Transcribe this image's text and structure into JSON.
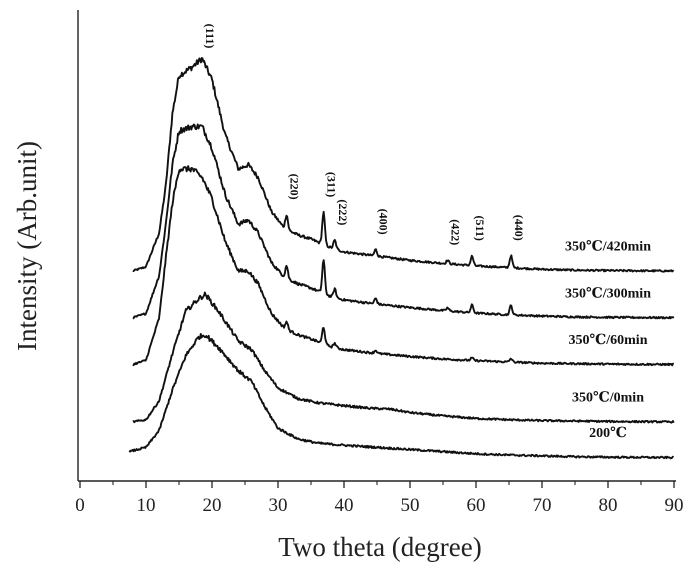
{
  "chart_data": {
    "type": "line",
    "title": "",
    "xlabel": "Two theta (degree)",
    "ylabel": "Intensity (Arb.unit)",
    "xlim": [
      0,
      90
    ],
    "x_ticks": [
      0,
      10,
      20,
      30,
      40,
      50,
      60,
      70,
      80,
      90
    ],
    "y_scale": "arbitrary",
    "grid": false,
    "legend": "inline labels at right",
    "line_color": "#111111",
    "peak_labels": [
      {
        "label": "(111)",
        "x": 18.5
      },
      {
        "label": "(220)",
        "x": 31.3
      },
      {
        "label": "(311)",
        "x": 36.9
      },
      {
        "label": "(222)",
        "x": 38.6
      },
      {
        "label": "(400)",
        "x": 44.8
      },
      {
        "label": "(422)",
        "x": 55.7
      },
      {
        "label": "(511)",
        "x": 59.4
      },
      {
        "label": "(440)",
        "x": 65.3
      }
    ],
    "series": [
      {
        "name": "350℃/420min",
        "offset": 4.4,
        "base": [
          [
            8,
            0
          ],
          [
            10,
            0.1
          ],
          [
            12,
            0.9
          ],
          [
            13,
            2.0
          ],
          [
            14,
            3.7
          ],
          [
            15,
            4.6
          ],
          [
            17,
            4.8
          ],
          [
            18.5,
            5.0
          ],
          [
            20,
            4.5
          ],
          [
            22,
            3.2
          ],
          [
            24,
            2.4
          ],
          [
            25.5,
            2.5
          ],
          [
            27,
            2.2
          ],
          [
            29,
            1.4
          ],
          [
            31,
            1.0
          ],
          [
            33,
            0.85
          ],
          [
            35,
            0.75
          ],
          [
            38,
            0.55
          ],
          [
            40,
            0.45
          ],
          [
            45,
            0.35
          ],
          [
            50,
            0.25
          ],
          [
            55,
            0.18
          ],
          [
            60,
            0.12
          ],
          [
            65,
            0.08
          ],
          [
            70,
            0.04
          ],
          [
            75,
            0.02
          ],
          [
            80,
            0.01
          ],
          [
            90,
            0
          ]
        ],
        "peaks": [
          [
            31.3,
            0.35
          ],
          [
            36.9,
            0.75
          ],
          [
            38.6,
            0.2
          ],
          [
            44.8,
            0.15
          ],
          [
            55.7,
            0.08
          ],
          [
            59.4,
            0.22
          ],
          [
            65.3,
            0.28
          ]
        ]
      },
      {
        "name": "350℃/300min",
        "offset": 3.3,
        "base": [
          [
            8,
            0
          ],
          [
            10,
            0.1
          ],
          [
            12,
            1.0
          ],
          [
            13,
            2.2
          ],
          [
            14,
            3.6
          ],
          [
            15,
            4.4
          ],
          [
            17,
            4.5
          ],
          [
            18.5,
            4.5
          ],
          [
            20,
            4.0
          ],
          [
            22,
            2.9
          ],
          [
            24,
            2.2
          ],
          [
            25.5,
            2.3
          ],
          [
            27,
            2.0
          ],
          [
            29,
            1.3
          ],
          [
            31,
            0.95
          ],
          [
            33,
            0.8
          ],
          [
            35,
            0.7
          ],
          [
            38,
            0.5
          ],
          [
            40,
            0.42
          ],
          [
            45,
            0.32
          ],
          [
            50,
            0.24
          ],
          [
            55,
            0.17
          ],
          [
            60,
            0.11
          ],
          [
            65,
            0.07
          ],
          [
            70,
            0.04
          ],
          [
            75,
            0.02
          ],
          [
            80,
            0.01
          ],
          [
            90,
            0
          ]
        ],
        "peaks": [
          [
            31.3,
            0.3
          ],
          [
            36.9,
            0.78
          ],
          [
            38.6,
            0.2
          ],
          [
            44.8,
            0.13
          ],
          [
            55.7,
            0.07
          ],
          [
            59.4,
            0.18
          ],
          [
            65.3,
            0.22
          ]
        ]
      },
      {
        "name": "350℃/60min",
        "offset": 2.2,
        "base": [
          [
            8,
            0
          ],
          [
            10,
            0.1
          ],
          [
            12,
            1.1
          ],
          [
            13,
            2.5
          ],
          [
            14,
            3.8
          ],
          [
            15,
            4.6
          ],
          [
            17,
            4.6
          ],
          [
            18.5,
            4.4
          ],
          [
            20,
            3.9
          ],
          [
            22,
            2.9
          ],
          [
            24,
            2.2
          ],
          [
            25.5,
            2.2
          ],
          [
            27,
            1.9
          ],
          [
            29,
            1.2
          ],
          [
            31,
            0.85
          ],
          [
            33,
            0.7
          ],
          [
            35,
            0.6
          ],
          [
            38,
            0.42
          ],
          [
            40,
            0.35
          ],
          [
            45,
            0.26
          ],
          [
            50,
            0.19
          ],
          [
            55,
            0.13
          ],
          [
            60,
            0.09
          ],
          [
            65,
            0.06
          ],
          [
            70,
            0.03
          ],
          [
            75,
            0.02
          ],
          [
            80,
            0.01
          ],
          [
            90,
            0
          ]
        ],
        "peaks": [
          [
            31.3,
            0.18
          ],
          [
            36.9,
            0.4
          ],
          [
            38.6,
            0.1
          ],
          [
            44.8,
            0.07
          ],
          [
            59.4,
            0.06
          ],
          [
            65.3,
            0.08
          ]
        ]
      },
      {
        "name": "350℃/0min",
        "offset": 0.85,
        "base": [
          [
            8,
            0
          ],
          [
            10,
            0.05
          ],
          [
            12,
            0.5
          ],
          [
            14,
            1.6
          ],
          [
            16,
            2.6
          ],
          [
            18,
            2.9
          ],
          [
            19,
            3.0
          ],
          [
            21,
            2.6
          ],
          [
            24,
            1.9
          ],
          [
            26,
            1.7
          ],
          [
            28,
            1.2
          ],
          [
            30,
            0.8
          ],
          [
            33,
            0.55
          ],
          [
            36,
            0.45
          ],
          [
            40,
            0.38
          ],
          [
            44,
            0.32
          ],
          [
            47,
            0.3
          ],
          [
            50,
            0.22
          ],
          [
            55,
            0.14
          ],
          [
            60,
            0.08
          ],
          [
            65,
            0.05
          ],
          [
            70,
            0.03
          ],
          [
            80,
            0.01
          ],
          [
            90,
            0
          ]
        ],
        "peaks": []
      },
      {
        "name": "200℃",
        "offset": 0,
        "base": [
          [
            7.5,
            0.15
          ],
          [
            10,
            0.25
          ],
          [
            12,
            0.65
          ],
          [
            14,
            1.6
          ],
          [
            16,
            2.4
          ],
          [
            18,
            2.85
          ],
          [
            19,
            2.9
          ],
          [
            21,
            2.6
          ],
          [
            24,
            2.05
          ],
          [
            26,
            1.8
          ],
          [
            28,
            1.2
          ],
          [
            30,
            0.7
          ],
          [
            33,
            0.45
          ],
          [
            36,
            0.35
          ],
          [
            40,
            0.3
          ],
          [
            45,
            0.25
          ],
          [
            50,
            0.2
          ],
          [
            55,
            0.15
          ],
          [
            60,
            0.1
          ],
          [
            65,
            0.07
          ],
          [
            70,
            0.05
          ],
          [
            75,
            0.03
          ],
          [
            80,
            0.02
          ],
          [
            90,
            0.01
          ]
        ],
        "peaks": []
      }
    ]
  }
}
